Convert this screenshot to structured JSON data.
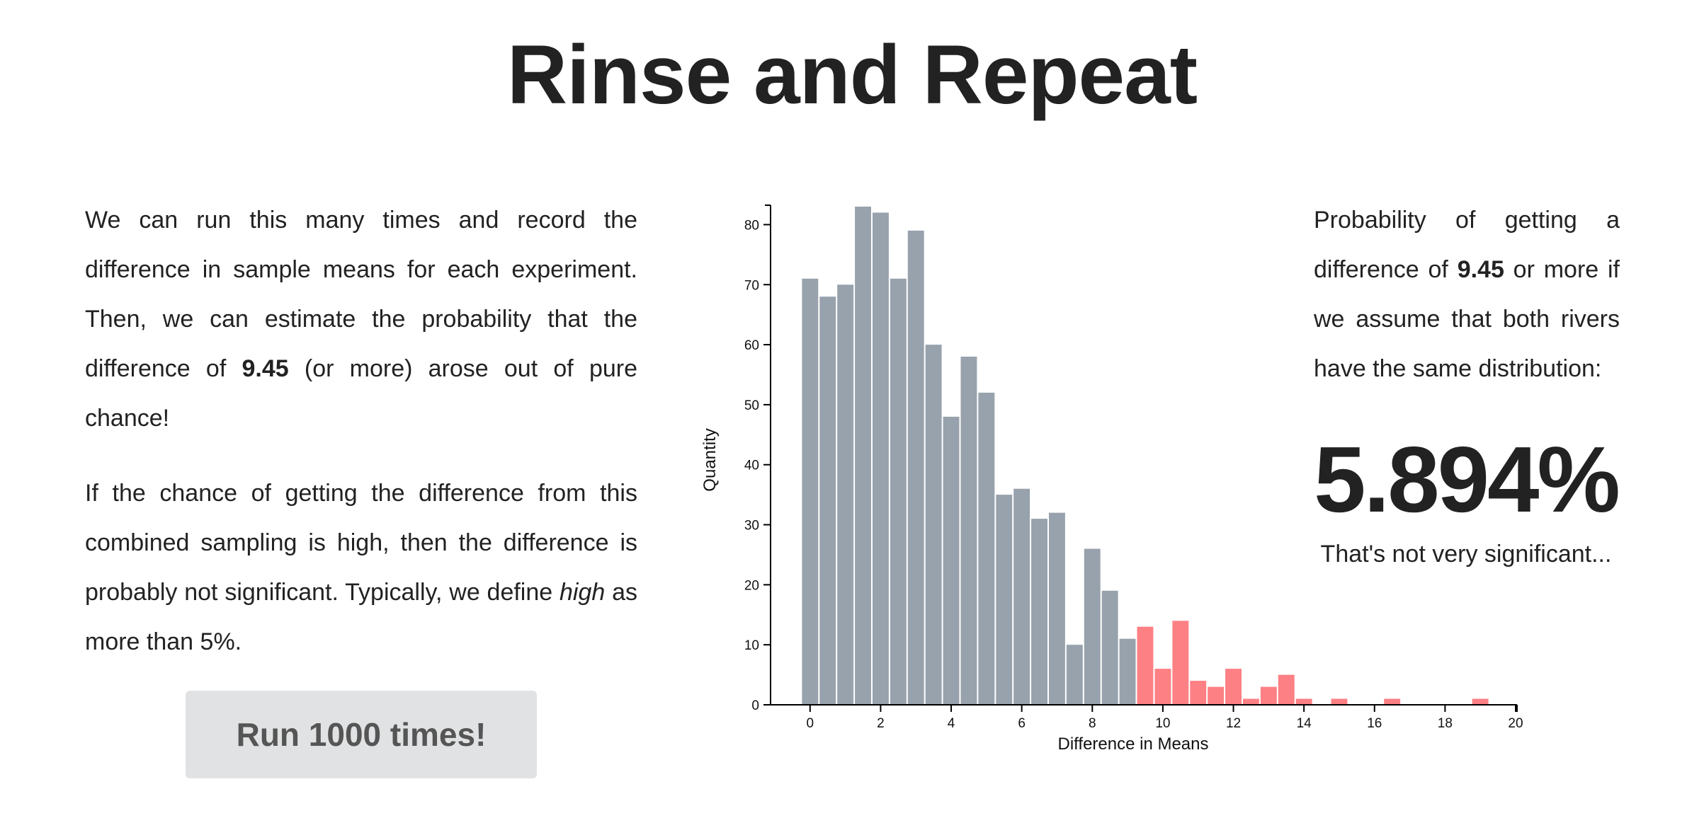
{
  "page": {
    "title": "Rinse and Repeat"
  },
  "left": {
    "p1_a": "We can run this many times and record the difference in sample means for each experiment. Then, we can estimate the probability that the difference of ",
    "p1_value": "9.45",
    "p1_b": " (or more) arose out of pure chance!",
    "p2_a": "If the chance of getting the difference from this combined sampling is high, then the difference is probably not significant. Typically, we define ",
    "p2_em": "high",
    "p2_b": " as more than 5%.",
    "button_label": "Run 1000 times!"
  },
  "right": {
    "prob_a": "Probability of getting a difference of ",
    "prob_value": "9.45",
    "prob_b": " or more if we assume that both rivers have the same distribution:",
    "percent": "5.894%",
    "verdict": "That's not very significant..."
  },
  "colors": {
    "gray_bar": "#98a2ad",
    "red_bar": "#fd8084",
    "button_bg": "#e1e2e3"
  },
  "chart_data": {
    "type": "bar",
    "xlabel": "Difference in Means",
    "ylabel": "Quantity",
    "xlim": [
      -1,
      20
    ],
    "ylim": [
      0,
      83
    ],
    "x_ticks": [
      0,
      2,
      4,
      6,
      8,
      10,
      12,
      14,
      16,
      18,
      20
    ],
    "y_ticks": [
      0,
      10,
      20,
      30,
      40,
      50,
      60,
      70,
      80
    ],
    "bin_width": 0.5,
    "threshold": 9.45,
    "bins": [
      {
        "x0": -0.25,
        "value": 71,
        "highlight": false
      },
      {
        "x0": 0.25,
        "value": 68,
        "highlight": false
      },
      {
        "x0": 0.75,
        "value": 70,
        "highlight": false
      },
      {
        "x0": 1.25,
        "value": 83,
        "highlight": false
      },
      {
        "x0": 1.75,
        "value": 82,
        "highlight": false
      },
      {
        "x0": 2.25,
        "value": 71,
        "highlight": false
      },
      {
        "x0": 2.75,
        "value": 79,
        "highlight": false
      },
      {
        "x0": 3.25,
        "value": 60,
        "highlight": false
      },
      {
        "x0": 3.75,
        "value": 48,
        "highlight": false
      },
      {
        "x0": 4.25,
        "value": 58,
        "highlight": false
      },
      {
        "x0": 4.75,
        "value": 52,
        "highlight": false
      },
      {
        "x0": 5.25,
        "value": 35,
        "highlight": false
      },
      {
        "x0": 5.75,
        "value": 36,
        "highlight": false
      },
      {
        "x0": 6.25,
        "value": 31,
        "highlight": false
      },
      {
        "x0": 6.75,
        "value": 32,
        "highlight": false
      },
      {
        "x0": 7.25,
        "value": 10,
        "highlight": false
      },
      {
        "x0": 7.75,
        "value": 26,
        "highlight": false
      },
      {
        "x0": 8.25,
        "value": 19,
        "highlight": false
      },
      {
        "x0": 8.75,
        "value": 11,
        "highlight": false
      },
      {
        "x0": 9.25,
        "value": 13,
        "highlight": true
      },
      {
        "x0": 9.75,
        "value": 6,
        "highlight": true
      },
      {
        "x0": 10.25,
        "value": 14,
        "highlight": true
      },
      {
        "x0": 10.75,
        "value": 4,
        "highlight": true
      },
      {
        "x0": 11.25,
        "value": 3,
        "highlight": true
      },
      {
        "x0": 11.75,
        "value": 6,
        "highlight": true
      },
      {
        "x0": 12.25,
        "value": 1,
        "highlight": true
      },
      {
        "x0": 12.75,
        "value": 3,
        "highlight": true
      },
      {
        "x0": 13.25,
        "value": 5,
        "highlight": true
      },
      {
        "x0": 13.75,
        "value": 1,
        "highlight": true
      },
      {
        "x0": 14.75,
        "value": 1,
        "highlight": true
      },
      {
        "x0": 16.25,
        "value": 1,
        "highlight": true
      },
      {
        "x0": 18.75,
        "value": 1,
        "highlight": true
      }
    ]
  }
}
